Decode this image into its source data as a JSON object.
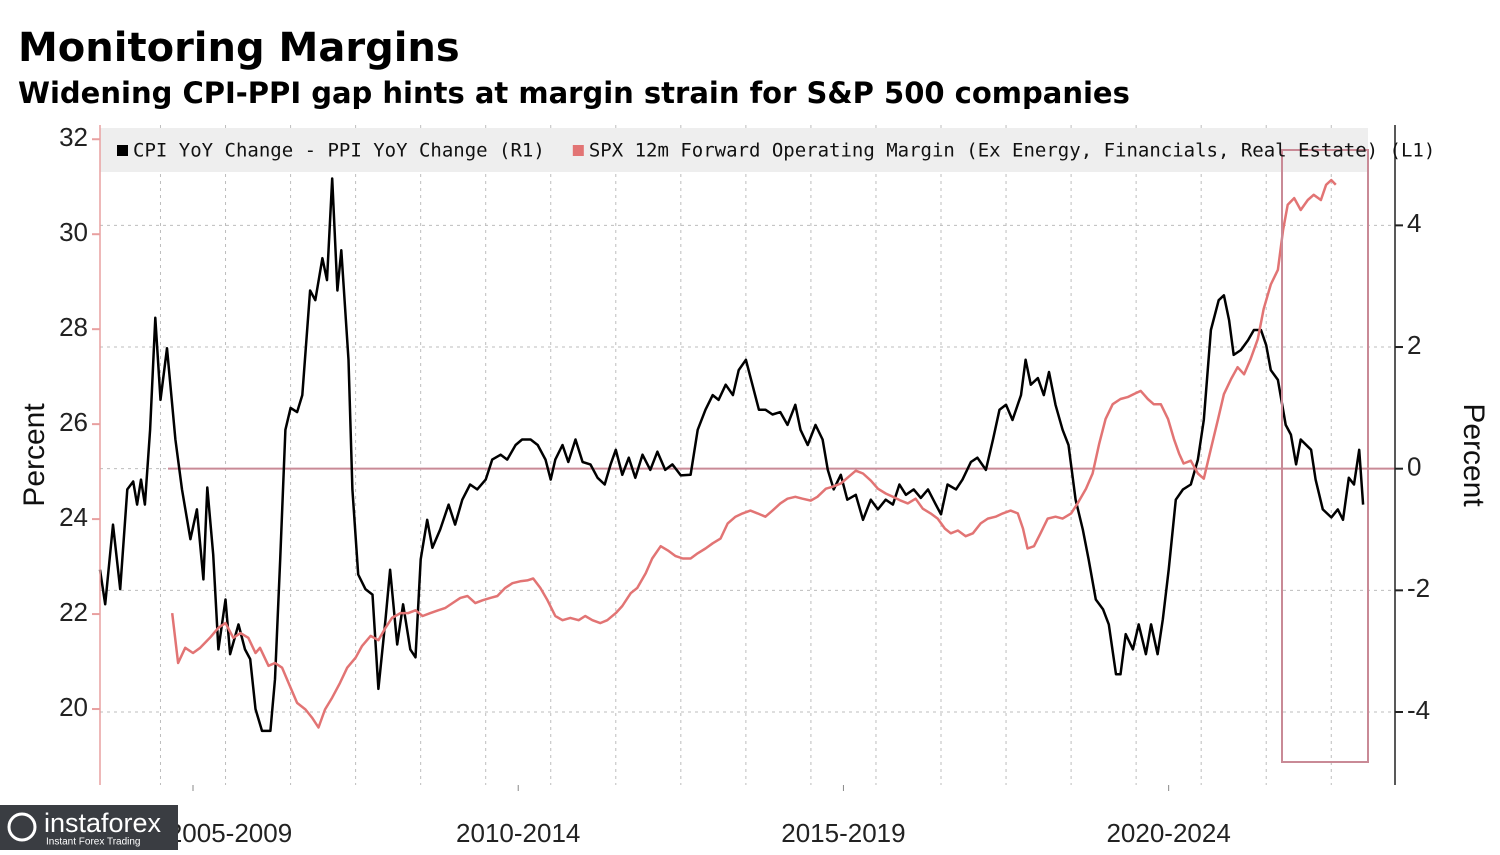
{
  "chart_data": {
    "type": "line",
    "title": "Monitoring Margins",
    "subtitle": "Widening CPI-PPI gap hints at margin strain for S&P 500 companies",
    "ylabel": "Percent",
    "y2label": "Percent",
    "xlim": [
      2006.07,
      2025.98
    ],
    "xticks": [
      {
        "value": 2007.5,
        "label": "2005-2009"
      },
      {
        "value": 2012.5,
        "label": "2010-2014"
      },
      {
        "value": 2017.5,
        "label": "2015-2019"
      },
      {
        "value": 2022.5,
        "label": "2020-2024"
      }
    ],
    "x_gridlines": [
      2007,
      2008,
      2009,
      2010,
      2011,
      2012,
      2013,
      2014,
      2015,
      2016,
      2017,
      2018,
      2019,
      2020,
      2021,
      2022,
      2023,
      2024,
      2025
    ],
    "ylim": [
      18.4,
      32.3
    ],
    "yticks": [
      20,
      22,
      24,
      26,
      28,
      30,
      32
    ],
    "y2lim": [
      -5.2,
      5.65
    ],
    "y2ticks": [
      -4,
      -2,
      0,
      2,
      4
    ],
    "y2_reference_line": {
      "value": 0,
      "color": "#c98a96"
    },
    "grid": true,
    "series": [
      {
        "name": "CPI YoY Change - PPI YoY Change (R1)",
        "color": "#000000",
        "axis": "y2",
        "x": [
          2006.07,
          2006.15,
          2006.27,
          2006.38,
          2006.49,
          2006.58,
          2006.64,
          2006.7,
          2006.76,
          2006.84,
          2006.92,
          2007.0,
          2007.1,
          2007.23,
          2007.33,
          2007.46,
          2007.56,
          2007.66,
          2007.72,
          2007.81,
          2007.89,
          2008.0,
          2008.07,
          2008.2,
          2008.3,
          2008.38,
          2008.46,
          2008.56,
          2008.69,
          2008.76,
          2008.84,
          2008.92,
          2009.0,
          2009.1,
          2009.18,
          2009.3,
          2009.38,
          2009.49,
          2009.56,
          2009.64,
          2009.72,
          2009.78,
          2009.89,
          2009.95,
          2010.04,
          2010.15,
          2010.26,
          2010.35,
          2010.46,
          2010.53,
          2010.64,
          2010.73,
          2010.84,
          2010.92,
          2011.0,
          2011.1,
          2011.18,
          2011.3,
          2011.43,
          2011.53,
          2011.64,
          2011.76,
          2011.87,
          2012.0,
          2012.1,
          2012.23,
          2012.33,
          2012.46,
          2012.56,
          2012.69,
          2012.8,
          2012.92,
          2013.0,
          2013.07,
          2013.18,
          2013.27,
          2013.38,
          2013.49,
          2013.61,
          2013.72,
          2013.83,
          2013.92,
          2014.0,
          2014.1,
          2014.2,
          2014.3,
          2014.41,
          2014.53,
          2014.64,
          2014.76,
          2014.87,
          2015.0,
          2015.15,
          2015.26,
          2015.38,
          2015.49,
          2015.58,
          2015.69,
          2015.8,
          2015.89,
          2016.0,
          2016.1,
          2016.2,
          2016.3,
          2016.41,
          2016.53,
          2016.64,
          2016.76,
          2016.84,
          2016.95,
          2017.07,
          2017.18,
          2017.26,
          2017.35,
          2017.46,
          2017.56,
          2017.69,
          2017.8,
          2017.92,
          2018.03,
          2018.15,
          2018.26,
          2018.36,
          2018.46,
          2018.58,
          2018.69,
          2018.8,
          2018.92,
          2019.0,
          2019.1,
          2019.23,
          2019.33,
          2019.46,
          2019.56,
          2019.69,
          2019.8,
          2019.9,
          2020.0,
          2020.1,
          2020.23,
          2020.3,
          2020.38,
          2020.49,
          2020.58,
          2020.66,
          2020.76,
          2020.87,
          2020.96,
          2021.07,
          2021.18,
          2021.27,
          2021.38,
          2021.49,
          2021.58,
          2021.69,
          2021.76,
          2021.84,
          2021.95,
          2022.04,
          2022.15,
          2022.23,
          2022.33,
          2022.41,
          2022.5,
          2022.61,
          2022.72,
          2022.84,
          2022.95,
          2023.04,
          2023.15,
          2023.27,
          2023.35,
          2023.43,
          2023.5,
          2023.61,
          2023.72,
          2023.81,
          2023.92,
          2024.0,
          2024.07,
          2024.18,
          2024.3,
          2024.38,
          2024.46,
          2024.53,
          2024.69,
          2024.76,
          2024.87,
          2025.0,
          2025.1,
          2025.18,
          2025.27,
          2025.35,
          2025.43,
          2025.49
        ],
        "values": [
          -1.66,
          -2.23,
          -0.92,
          -1.98,
          -0.34,
          -0.21,
          -0.59,
          -0.18,
          -0.59,
          0.64,
          2.48,
          1.13,
          1.98,
          0.48,
          -0.34,
          -1.16,
          -0.67,
          -1.82,
          -0.31,
          -1.41,
          -2.97,
          -2.15,
          -3.05,
          -2.56,
          -2.97,
          -3.13,
          -3.95,
          -4.31,
          -4.31,
          -3.46,
          -1.49,
          0.64,
          1.0,
          0.93,
          1.21,
          2.93,
          2.77,
          3.46,
          3.1,
          4.77,
          2.93,
          3.59,
          1.79,
          -0.34,
          -1.74,
          -1.98,
          -2.07,
          -3.62,
          -2.48,
          -1.66,
          -2.89,
          -2.23,
          -2.97,
          -3.1,
          -1.49,
          -0.84,
          -1.3,
          -1.0,
          -0.59,
          -0.92,
          -0.51,
          -0.26,
          -0.34,
          -0.18,
          0.15,
          0.23,
          0.15,
          0.39,
          0.48,
          0.48,
          0.39,
          0.15,
          -0.18,
          0.15,
          0.39,
          0.11,
          0.48,
          0.11,
          0.07,
          -0.15,
          -0.26,
          0.07,
          0.31,
          -0.1,
          0.18,
          -0.15,
          0.23,
          -0.02,
          0.28,
          -0.02,
          0.07,
          -0.11,
          -0.1,
          0.64,
          0.97,
          1.21,
          1.13,
          1.38,
          1.21,
          1.62,
          1.79,
          1.38,
          0.97,
          0.97,
          0.89,
          0.93,
          0.72,
          1.05,
          0.64,
          0.39,
          0.72,
          0.48,
          -0.02,
          -0.34,
          -0.1,
          -0.51,
          -0.43,
          -0.84,
          -0.51,
          -0.67,
          -0.51,
          -0.59,
          -0.26,
          -0.43,
          -0.34,
          -0.48,
          -0.34,
          -0.59,
          -0.75,
          -0.26,
          -0.34,
          -0.18,
          0.11,
          0.18,
          -0.02,
          0.48,
          0.97,
          1.05,
          0.8,
          1.21,
          1.79,
          1.38,
          1.49,
          1.21,
          1.59,
          1.05,
          0.64,
          0.39,
          -0.51,
          -1.0,
          -1.49,
          -2.15,
          -2.31,
          -2.56,
          -3.38,
          -3.38,
          -2.72,
          -2.97,
          -2.56,
          -3.05,
          -2.56,
          -3.05,
          -2.48,
          -1.66,
          -0.51,
          -0.34,
          -0.26,
          0.15,
          0.8,
          2.28,
          2.77,
          2.85,
          2.44,
          1.87,
          1.95,
          2.11,
          2.28,
          2.28,
          2.03,
          1.62,
          1.46,
          0.72,
          0.56,
          0.07,
          0.48,
          0.31,
          -0.18,
          -0.67,
          -0.8,
          -0.67,
          -0.84,
          -0.15,
          -0.26,
          0.31,
          -0.59
        ]
      },
      {
        "name": "SPX 12m Forward Operating Margin (Ex Energy, Financials, Real Estate) (L1)",
        "color": "#e27474",
        "axis": "y",
        "x": [
          2007.18,
          2007.27,
          2007.38,
          2007.5,
          2007.61,
          2007.76,
          2007.89,
          2008.0,
          2008.12,
          2008.23,
          2008.35,
          2008.46,
          2008.53,
          2008.66,
          2008.76,
          2008.87,
          2009.0,
          2009.1,
          2009.23,
          2009.33,
          2009.43,
          2009.53,
          2009.64,
          2009.76,
          2009.87,
          2010.0,
          2010.1,
          2010.23,
          2010.35,
          2010.46,
          2010.56,
          2010.69,
          2010.81,
          2010.92,
          2011.03,
          2011.15,
          2011.27,
          2011.38,
          2011.49,
          2011.61,
          2011.72,
          2011.84,
          2011.95,
          2012.07,
          2012.18,
          2012.3,
          2012.41,
          2012.53,
          2012.64,
          2012.73,
          2012.84,
          2012.95,
          2013.07,
          2013.18,
          2013.3,
          2013.43,
          2013.53,
          2013.64,
          2013.76,
          2013.87,
          2014.0,
          2014.1,
          2014.23,
          2014.33,
          2014.46,
          2014.56,
          2014.69,
          2014.8,
          2014.92,
          2015.03,
          2015.15,
          2015.26,
          2015.38,
          2015.49,
          2015.61,
          2015.72,
          2015.84,
          2015.95,
          2016.07,
          2016.18,
          2016.3,
          2016.41,
          2016.53,
          2016.64,
          2016.76,
          2016.87,
          2017.0,
          2017.1,
          2017.23,
          2017.33,
          2017.46,
          2017.58,
          2017.69,
          2017.8,
          2017.92,
          2018.03,
          2018.15,
          2018.26,
          2018.38,
          2018.49,
          2018.61,
          2018.72,
          2018.84,
          2018.95,
          2019.06,
          2019.15,
          2019.26,
          2019.38,
          2019.49,
          2019.61,
          2019.72,
          2019.84,
          2019.95,
          2020.07,
          2020.18,
          2020.26,
          2020.33,
          2020.43,
          2020.53,
          2020.64,
          2020.76,
          2020.87,
          2021.0,
          2021.1,
          2021.23,
          2021.33,
          2021.43,
          2021.53,
          2021.64,
          2021.76,
          2021.87,
          2021.96,
          2022.07,
          2022.18,
          2022.27,
          2022.38,
          2022.49,
          2022.58,
          2022.66,
          2022.73,
          2022.84,
          2022.95,
          2023.04,
          2023.15,
          2023.26,
          2023.35,
          2023.46,
          2023.56,
          2023.66,
          2023.76,
          2023.87,
          2023.96,
          2024.07,
          2024.18,
          2024.26,
          2024.33,
          2024.43,
          2024.53,
          2024.64,
          2024.73,
          2024.84,
          2024.92,
          2025.0,
          2025.07
        ],
        "values": [
          22.02,
          20.97,
          21.29,
          21.18,
          21.29,
          21.5,
          21.71,
          21.81,
          21.5,
          21.6,
          21.5,
          21.18,
          21.29,
          20.91,
          20.97,
          20.87,
          20.45,
          20.13,
          19.99,
          19.82,
          19.61,
          19.99,
          20.24,
          20.55,
          20.87,
          21.08,
          21.33,
          21.54,
          21.45,
          21.71,
          21.92,
          22.02,
          22.02,
          22.08,
          21.96,
          22.02,
          22.08,
          22.13,
          22.23,
          22.34,
          22.38,
          22.23,
          22.29,
          22.34,
          22.38,
          22.55,
          22.65,
          22.69,
          22.71,
          22.75,
          22.55,
          22.29,
          21.96,
          21.87,
          21.92,
          21.87,
          21.96,
          21.87,
          21.81,
          21.87,
          22.02,
          22.17,
          22.44,
          22.55,
          22.86,
          23.17,
          23.43,
          23.34,
          23.22,
          23.17,
          23.17,
          23.28,
          23.38,
          23.49,
          23.59,
          23.91,
          24.05,
          24.12,
          24.18,
          24.12,
          24.05,
          24.18,
          24.33,
          24.43,
          24.47,
          24.43,
          24.39,
          24.47,
          24.64,
          24.68,
          24.75,
          24.89,
          25.02,
          24.96,
          24.81,
          24.64,
          24.54,
          24.47,
          24.39,
          24.33,
          24.43,
          24.22,
          24.12,
          24.01,
          23.8,
          23.7,
          23.76,
          23.64,
          23.7,
          23.91,
          24.01,
          24.05,
          24.12,
          24.18,
          24.12,
          23.8,
          23.38,
          23.43,
          23.7,
          24.01,
          24.05,
          24.01,
          24.12,
          24.33,
          24.64,
          24.96,
          25.58,
          26.11,
          26.42,
          26.53,
          26.57,
          26.63,
          26.7,
          26.53,
          26.42,
          26.42,
          26.11,
          25.69,
          25.38,
          25.17,
          25.23,
          24.96,
          24.85,
          25.48,
          26.11,
          26.63,
          26.95,
          27.2,
          27.05,
          27.37,
          27.79,
          28.42,
          28.94,
          29.25,
          30.09,
          30.62,
          30.76,
          30.51,
          30.72,
          30.83,
          30.72,
          31.04,
          31.14,
          31.04
        ]
      }
    ]
  },
  "watermark": {
    "brand": "instaforex",
    "tagline": "Instant Forex Trading"
  }
}
